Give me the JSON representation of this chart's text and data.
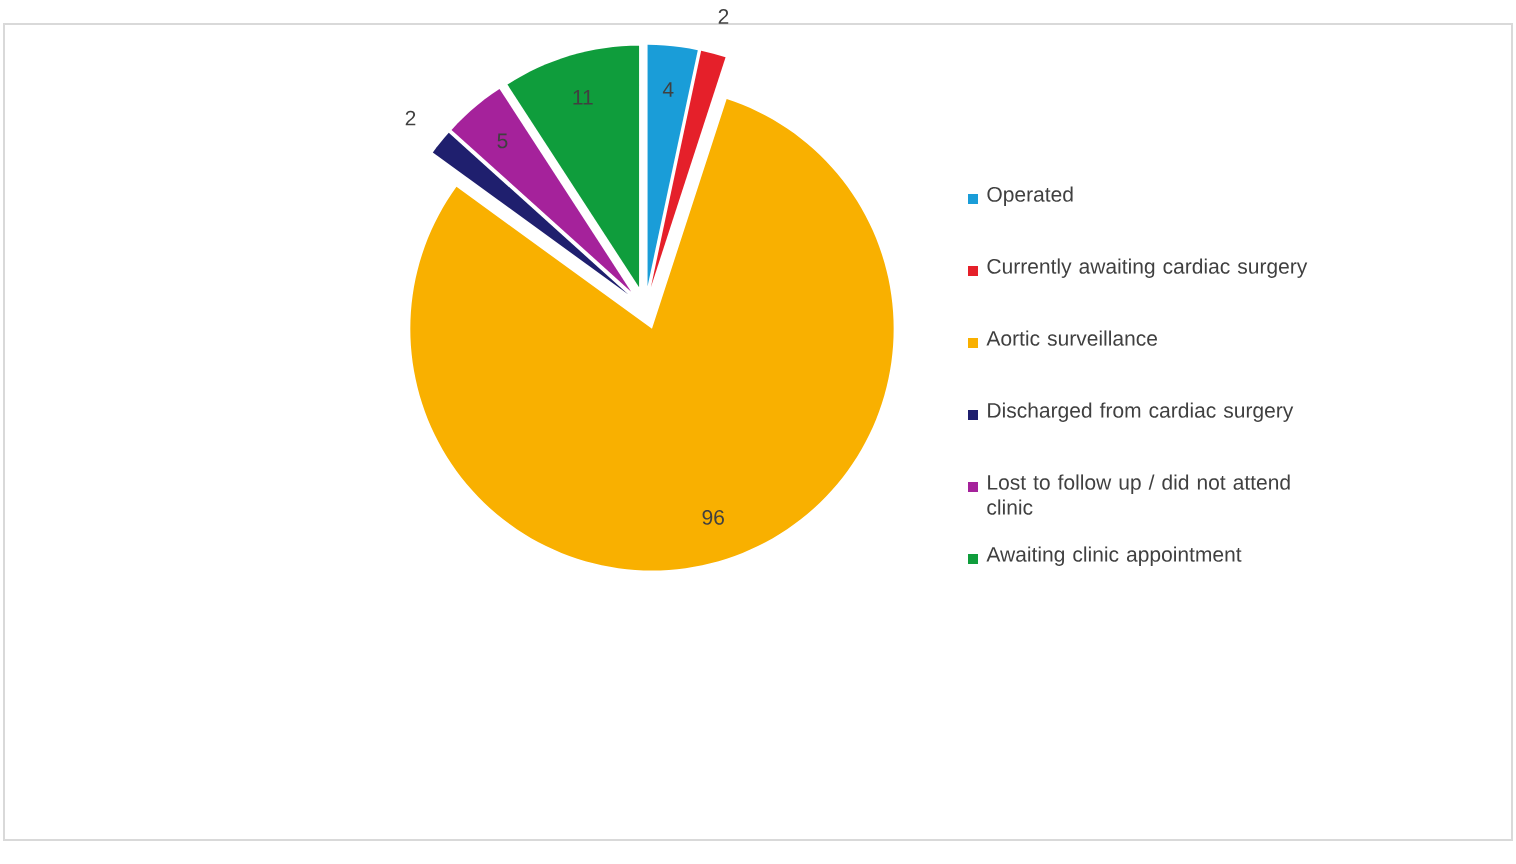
{
  "chart_data": {
    "type": "pie",
    "categories": [
      "Operated",
      "Currently awaiting cardiac surgery",
      "Aortic surveillance",
      "Discharged from cardiac surgery",
      "Lost to follow up / did not attend clinic",
      "Awaiting clinic appointment"
    ],
    "values": [
      4,
      2,
      96,
      2,
      5,
      11
    ],
    "colors": [
      "#1a9dd8",
      "#e5202a",
      "#f9b000",
      "#1f1f6e",
      "#a5229b",
      "#0f9d3c"
    ],
    "data_labels": true,
    "legend": "right"
  }
}
